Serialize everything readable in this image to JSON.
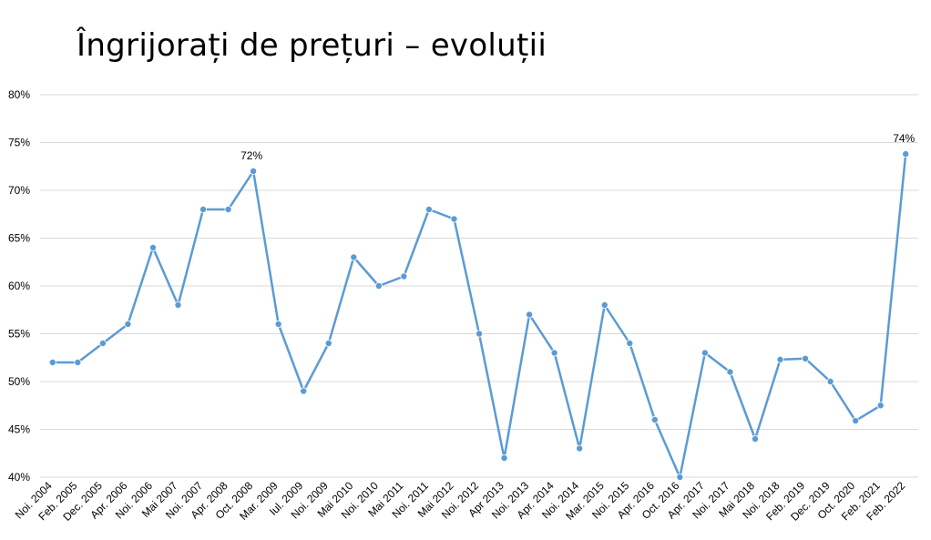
{
  "chart_data": {
    "type": "line",
    "title": "Îngrijorați de prețuri – evoluții",
    "xlabel": "",
    "ylabel": "",
    "ylim": [
      40,
      80
    ],
    "yticks": [
      "40%",
      "45%",
      "50%",
      "55%",
      "60%",
      "65%",
      "70%",
      "75%",
      "80%"
    ],
    "grid": true,
    "legend": "none",
    "line_color": "#5b9bd5",
    "grid_color": "#d9d9d9",
    "categories": [
      "Noi. 2004",
      "Feb. 2005",
      "Dec. 2005",
      "Apr. 2006",
      "Noi. 2006",
      "Mai 2007",
      "Noi. 2007",
      "Apr. 2008",
      "Oct. 2008",
      "Mar. 2009",
      "Iul. 2009",
      "Noi. 2009",
      "Mai 2010",
      "Noi. 2010",
      "Mai 2011",
      "Noi. 2011",
      "Mai 2012",
      "Noi. 2012",
      "Apr 2013",
      "Noi. 2013",
      "Apr. 2014",
      "Noi. 2014",
      "Mar. 2015",
      "Noi. 2015",
      "Apr. 2016",
      "Oct. 2016",
      "Apr. 2017",
      "Noi. 2017",
      "Mai 2018",
      "Noi. 2018",
      "Feb. 2019",
      "Dec. 2019",
      "Oct. 2020",
      "Feb. 2021",
      "Feb. 2022"
    ],
    "series": [
      {
        "values": [
          52,
          52,
          54,
          56,
          64,
          58,
          68,
          68,
          72,
          56,
          49,
          54,
          63,
          60,
          61,
          68,
          67,
          55,
          42,
          57,
          53,
          43,
          58,
          54,
          46,
          40,
          53,
          51,
          44,
          52.3,
          52.4,
          50,
          45.9,
          47.5,
          73.8
        ]
      }
    ],
    "data_labels": [
      {
        "index": 8,
        "text": "72%"
      },
      {
        "index": 34,
        "text": "74%"
      }
    ]
  }
}
